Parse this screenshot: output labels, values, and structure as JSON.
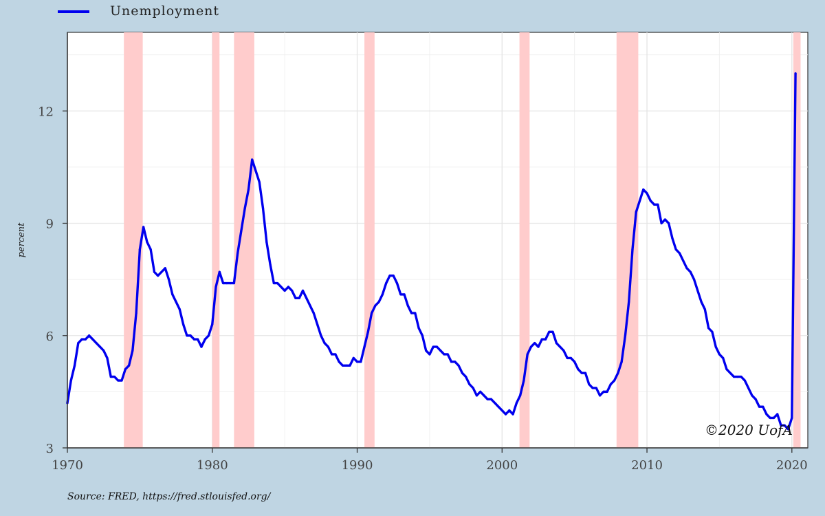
{
  "chart_data": {
    "type": "line",
    "legend": {
      "position": "top-left"
    },
    "ylabel": "percent",
    "xlim": [
      1970,
      2021.1
    ],
    "ylim": [
      3,
      14.1
    ],
    "x_ticks": [
      1970,
      1980,
      1990,
      2000,
      2010,
      2020
    ],
    "y_ticks": [
      3,
      6,
      9,
      12
    ],
    "grid": true,
    "source_note": "Source:  FRED, https://fred.stlouisfed.org/",
    "copyright": "©2020 UofA",
    "recessions": [
      [
        1973.9,
        1975.2
      ],
      [
        1980.0,
        1980.5
      ],
      [
        1981.5,
        1982.9
      ],
      [
        1990.5,
        1991.2
      ],
      [
        2001.2,
        2001.9
      ],
      [
        2007.9,
        2009.4
      ],
      [
        2020.1,
        2020.6
      ]
    ],
    "series": [
      {
        "name": "Unemployment",
        "color": "#0000ee",
        "x": [
          1970.0,
          1970.25,
          1970.5,
          1970.75,
          1971.0,
          1971.25,
          1971.5,
          1971.75,
          1972.0,
          1972.25,
          1972.5,
          1972.75,
          1973.0,
          1973.25,
          1973.5,
          1973.75,
          1974.0,
          1974.25,
          1974.5,
          1974.75,
          1975.0,
          1975.25,
          1975.5,
          1975.75,
          1976.0,
          1976.25,
          1976.5,
          1976.75,
          1977.0,
          1977.25,
          1977.5,
          1977.75,
          1978.0,
          1978.25,
          1978.5,
          1978.75,
          1979.0,
          1979.25,
          1979.5,
          1979.75,
          1980.0,
          1980.25,
          1980.5,
          1980.75,
          1981.0,
          1981.25,
          1981.5,
          1981.75,
          1982.0,
          1982.25,
          1982.5,
          1982.75,
          1983.0,
          1983.25,
          1983.5,
          1983.75,
          1984.0,
          1984.25,
          1984.5,
          1984.75,
          1985.0,
          1985.25,
          1985.5,
          1985.75,
          1986.0,
          1986.25,
          1986.5,
          1986.75,
          1987.0,
          1987.25,
          1987.5,
          1987.75,
          1988.0,
          1988.25,
          1988.5,
          1988.75,
          1989.0,
          1989.25,
          1989.5,
          1989.75,
          1990.0,
          1990.25,
          1990.5,
          1990.75,
          1991.0,
          1991.25,
          1991.5,
          1991.75,
          1992.0,
          1992.25,
          1992.5,
          1992.75,
          1993.0,
          1993.25,
          1993.5,
          1993.75,
          1994.0,
          1994.25,
          1994.5,
          1994.75,
          1995.0,
          1995.25,
          1995.5,
          1995.75,
          1996.0,
          1996.25,
          1996.5,
          1996.75,
          1997.0,
          1997.25,
          1997.5,
          1997.75,
          1998.0,
          1998.25,
          1998.5,
          1998.75,
          1999.0,
          1999.25,
          1999.5,
          1999.75,
          2000.0,
          2000.25,
          2000.5,
          2000.75,
          2001.0,
          2001.25,
          2001.5,
          2001.75,
          2002.0,
          2002.25,
          2002.5,
          2002.75,
          2003.0,
          2003.25,
          2003.5,
          2003.75,
          2004.0,
          2004.25,
          2004.5,
          2004.75,
          2005.0,
          2005.25,
          2005.5,
          2005.75,
          2006.0,
          2006.25,
          2006.5,
          2006.75,
          2007.0,
          2007.25,
          2007.5,
          2007.75,
          2008.0,
          2008.25,
          2008.5,
          2008.75,
          2009.0,
          2009.25,
          2009.5,
          2009.75,
          2010.0,
          2010.25,
          2010.5,
          2010.75,
          2011.0,
          2011.25,
          2011.5,
          2011.75,
          2012.0,
          2012.25,
          2012.5,
          2012.75,
          2013.0,
          2013.25,
          2013.5,
          2013.75,
          2014.0,
          2014.25,
          2014.5,
          2014.75,
          2015.0,
          2015.25,
          2015.5,
          2015.75,
          2016.0,
          2016.25,
          2016.5,
          2016.75,
          2017.0,
          2017.25,
          2017.5,
          2017.75,
          2018.0,
          2018.25,
          2018.5,
          2018.75,
          2019.0,
          2019.25,
          2019.5,
          2019.75,
          2020.0,
          2020.25
        ],
        "values": [
          4.2,
          4.8,
          5.2,
          5.8,
          5.9,
          5.9,
          6.0,
          5.9,
          5.8,
          5.7,
          5.6,
          5.4,
          4.9,
          4.9,
          4.8,
          4.8,
          5.1,
          5.2,
          5.6,
          6.6,
          8.3,
          8.9,
          8.5,
          8.3,
          7.7,
          7.6,
          7.7,
          7.8,
          7.5,
          7.1,
          6.9,
          6.7,
          6.3,
          6.0,
          6.0,
          5.9,
          5.9,
          5.7,
          5.9,
          6.0,
          6.3,
          7.3,
          7.7,
          7.4,
          7.4,
          7.4,
          7.4,
          8.2,
          8.8,
          9.4,
          9.9,
          10.7,
          10.4,
          10.1,
          9.4,
          8.5,
          7.9,
          7.4,
          7.4,
          7.3,
          7.2,
          7.3,
          7.2,
          7.0,
          7.0,
          7.2,
          7.0,
          6.8,
          6.6,
          6.3,
          6.0,
          5.8,
          5.7,
          5.5,
          5.5,
          5.3,
          5.2,
          5.2,
          5.2,
          5.4,
          5.3,
          5.3,
          5.7,
          6.1,
          6.6,
          6.8,
          6.9,
          7.1,
          7.4,
          7.6,
          7.6,
          7.4,
          7.1,
          7.1,
          6.8,
          6.6,
          6.6,
          6.2,
          6.0,
          5.6,
          5.5,
          5.7,
          5.7,
          5.6,
          5.5,
          5.5,
          5.3,
          5.3,
          5.2,
          5.0,
          4.9,
          4.7,
          4.6,
          4.4,
          4.5,
          4.4,
          4.3,
          4.3,
          4.2,
          4.1,
          4.0,
          3.9,
          4.0,
          3.9,
          4.2,
          4.4,
          4.8,
          5.5,
          5.7,
          5.8,
          5.7,
          5.9,
          5.9,
          6.1,
          6.1,
          5.8,
          5.7,
          5.6,
          5.4,
          5.4,
          5.3,
          5.1,
          5.0,
          5.0,
          4.7,
          4.6,
          4.6,
          4.4,
          4.5,
          4.5,
          4.7,
          4.8,
          5.0,
          5.3,
          6.0,
          6.9,
          8.3,
          9.3,
          9.6,
          9.9,
          9.8,
          9.6,
          9.5,
          9.5,
          9.0,
          9.1,
          9.0,
          8.6,
          8.3,
          8.2,
          8.0,
          7.8,
          7.7,
          7.5,
          7.2,
          6.9,
          6.7,
          6.2,
          6.1,
          5.7,
          5.5,
          5.4,
          5.1,
          5.0,
          4.9,
          4.9,
          4.9,
          4.8,
          4.6,
          4.4,
          4.3,
          4.1,
          4.1,
          3.9,
          3.8,
          3.8,
          3.9,
          3.6,
          3.6,
          3.5,
          3.8,
          13.0
        ]
      }
    ]
  }
}
